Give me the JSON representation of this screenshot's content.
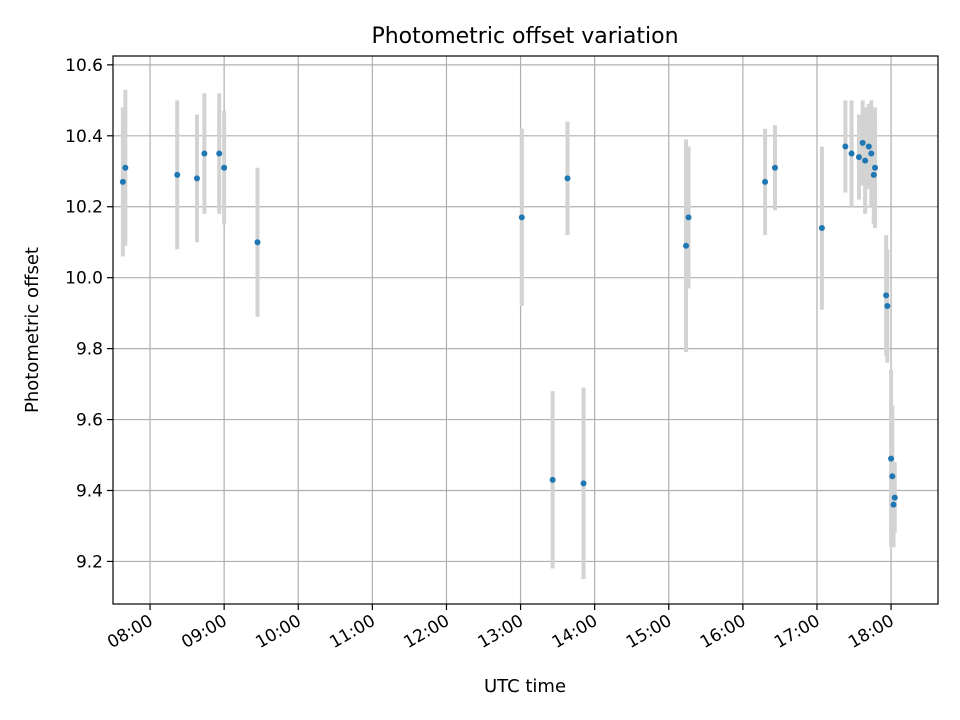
{
  "chart_data": {
    "type": "scatter",
    "title": "Photometric offset variation",
    "xlabel": "UTC time",
    "ylabel": "Photometric offset",
    "grid": true,
    "legend": "none",
    "x_axis": {
      "kind": "time",
      "range": [
        "07:30",
        "18:38"
      ],
      "ticks": [
        "08:00",
        "09:00",
        "10:00",
        "11:00",
        "12:00",
        "13:00",
        "14:00",
        "15:00",
        "16:00",
        "17:00",
        "18:00"
      ]
    },
    "y_axis": {
      "range": [
        9.08,
        10.625
      ],
      "ticks": [
        "9.2",
        "9.4",
        "9.6",
        "9.8",
        "10.0",
        "10.2",
        "10.4",
        "10.6"
      ]
    },
    "colors": {
      "point": "#1f77b4",
      "errorbar": "#d3d3d3",
      "grid": "#b0b0b0"
    },
    "series": [
      {
        "points": [
          {
            "time": "07:38",
            "y": 10.27,
            "err": 0.21
          },
          {
            "time": "07:40",
            "y": 10.31,
            "err": 0.22
          },
          {
            "time": "08:22",
            "y": 10.29,
            "err": 0.21
          },
          {
            "time": "08:38",
            "y": 10.28,
            "err": 0.18
          },
          {
            "time": "08:44",
            "y": 10.35,
            "err": 0.17
          },
          {
            "time": "08:56",
            "y": 10.35,
            "err": 0.17
          },
          {
            "time": "09:00",
            "y": 10.31,
            "err": 0.16
          },
          {
            "time": "09:27",
            "y": 10.1,
            "err": 0.21
          },
          {
            "time": "13:01",
            "y": 10.17,
            "err": 0.25
          },
          {
            "time": "13:26",
            "y": 9.43,
            "err": 0.25
          },
          {
            "time": "13:38",
            "y": 10.28,
            "err": 0.16
          },
          {
            "time": "13:51",
            "y": 9.42,
            "err": 0.27
          },
          {
            "time": "15:14",
            "y": 10.09,
            "err": 0.3
          },
          {
            "time": "15:16",
            "y": 10.17,
            "err": 0.2
          },
          {
            "time": "16:18",
            "y": 10.27,
            "err": 0.15
          },
          {
            "time": "16:26",
            "y": 10.31,
            "err": 0.12
          },
          {
            "time": "17:04",
            "y": 10.14,
            "err": 0.23
          },
          {
            "time": "17:23",
            "y": 10.37,
            "err": 0.13
          },
          {
            "time": "17:28",
            "y": 10.35,
            "err": 0.15
          },
          {
            "time": "17:34",
            "y": 10.34,
            "err": 0.12
          },
          {
            "time": "17:37",
            "y": 10.38,
            "err": 0.12
          },
          {
            "time": "17:39",
            "y": 10.33,
            "err": 0.15
          },
          {
            "time": "17:42",
            "y": 10.37,
            "err": 0.12
          },
          {
            "time": "17:44",
            "y": 10.35,
            "err": 0.15
          },
          {
            "time": "17:46",
            "y": 10.29,
            "err": 0.14
          },
          {
            "time": "17:47",
            "y": 10.31,
            "err": 0.17
          },
          {
            "time": "17:56",
            "y": 9.95,
            "err": 0.17
          },
          {
            "time": "17:57",
            "y": 9.92,
            "err": 0.16
          },
          {
            "time": "18:00",
            "y": 9.49,
            "err": 0.25
          },
          {
            "time": "18:01",
            "y": 9.44,
            "err": 0.2
          },
          {
            "time": "18:02",
            "y": 9.36,
            "err": 0.12
          },
          {
            "time": "18:03",
            "y": 9.38,
            "err": 0.1
          }
        ]
      }
    ]
  }
}
